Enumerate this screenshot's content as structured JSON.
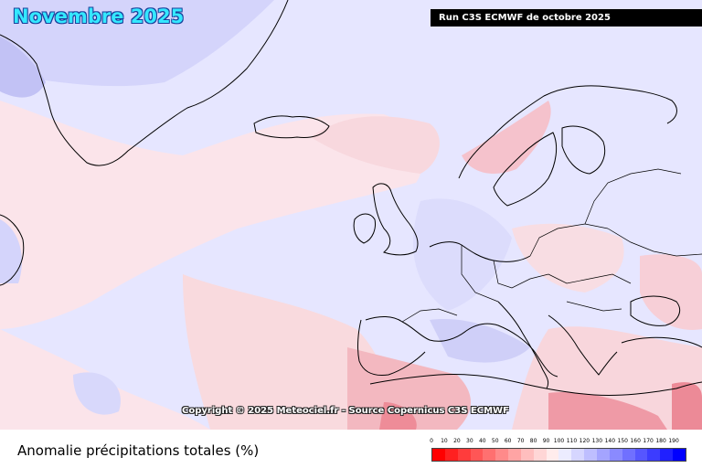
{
  "header": {
    "title": "Novembre 2025",
    "run_label": "Run C3S ECMWF de octobre 2025"
  },
  "map": {
    "copyright": "Copyright © 2025 Meteociel.fr - Source Copernicus C3S ECMWF",
    "background_color": "#e6e6ff"
  },
  "legend": {
    "caption": "Anomalie précipitations totales (%)",
    "ticks": [
      "0",
      "10",
      "20",
      "30",
      "40",
      "50",
      "60",
      "70",
      "80",
      "90",
      "100",
      "110",
      "120",
      "130",
      "140",
      "150",
      "160",
      "170",
      "180",
      "190"
    ],
    "colors": [
      "#ff0000",
      "#ff2020",
      "#ff3c3c",
      "#ff5656",
      "#ff7070",
      "#ff8a8a",
      "#ffa4a4",
      "#ffbebe",
      "#ffd6d6",
      "#ffecec",
      "#ececff",
      "#d6d6ff",
      "#bebeff",
      "#a4a4ff",
      "#8a8aff",
      "#7070ff",
      "#5656ff",
      "#3c3cff",
      "#2020ff",
      "#0000ff"
    ]
  }
}
